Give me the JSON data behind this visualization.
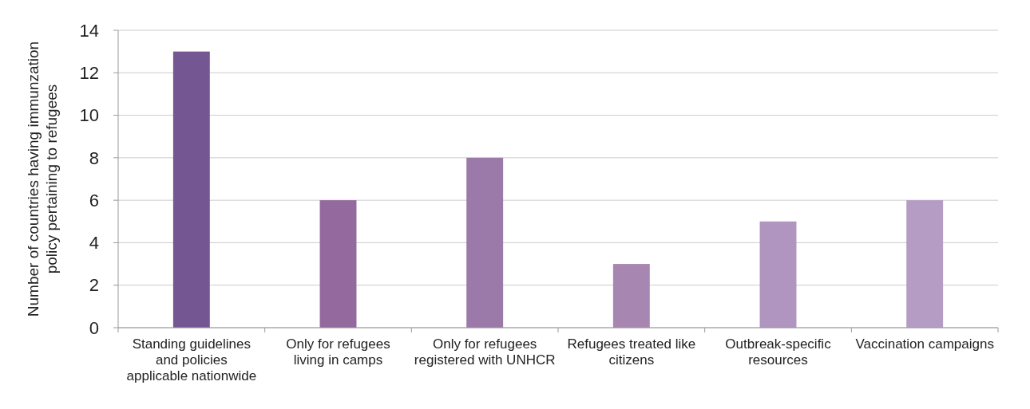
{
  "chart_data": {
    "type": "bar",
    "ylabel": "Number of countries having immunzation policy pertaining to refugees",
    "categories": [
      "Standing guidelines and policies applicable nationwide",
      "Only for refugees living in camps",
      "Only for refugees registered with UNHCR",
      "Refugees treated like citizens",
      "Outbreak-specific resources",
      "Vaccination campaigns"
    ],
    "values": [
      13,
      6,
      8,
      3,
      5,
      6
    ],
    "colors": [
      "#745693",
      "#93699e",
      "#9b79a8",
      "#a886b2",
      "#af95bf",
      "#b59cc5"
    ],
    "ylim": [
      0,
      14
    ],
    "yticks": [
      0,
      2,
      4,
      6,
      8,
      10,
      12,
      14
    ],
    "grid": "y"
  }
}
